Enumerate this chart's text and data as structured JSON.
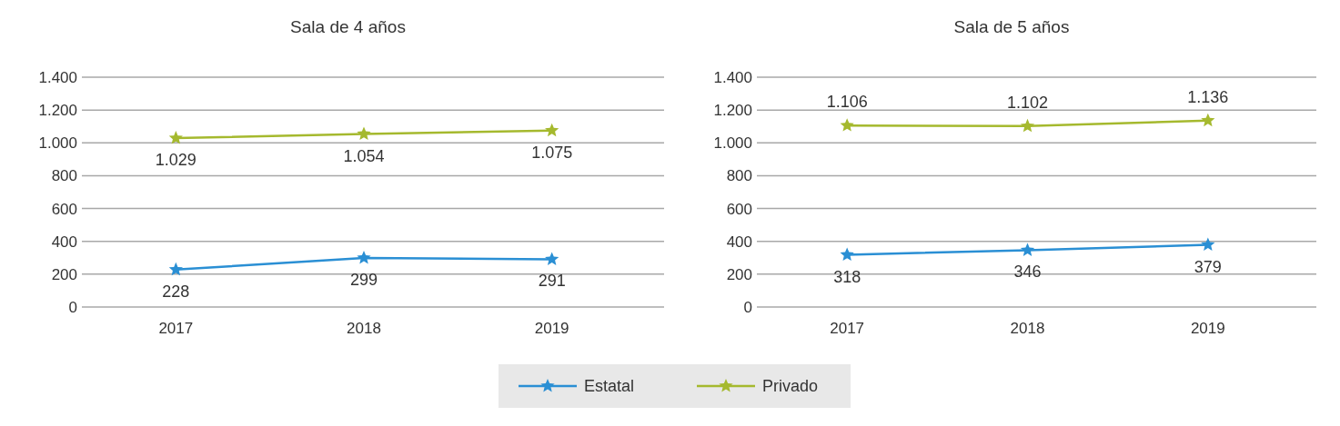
{
  "chart_data": [
    {
      "type": "line",
      "title": "Sala de 4 años",
      "categories": [
        "2017",
        "2018",
        "2019"
      ],
      "ylim": [
        0,
        1400
      ],
      "yticks": [
        0,
        200,
        400,
        600,
        800,
        {
          "value": 1000,
          "label": "1.000"
        },
        {
          "value": 1200,
          "label": "1.200"
        },
        {
          "value": 1400,
          "label": "1.400"
        }
      ],
      "grid": "y",
      "marker": "star",
      "legend": "bottom",
      "series": [
        {
          "name": "Estatal",
          "color": "#2a8fd4",
          "values": [
            228,
            299,
            291
          ],
          "value_labels": [
            "228",
            "299",
            "291"
          ]
        },
        {
          "name": "Privado",
          "color": "#a5b92e",
          "values": [
            1029,
            1054,
            1075
          ],
          "value_labels": [
            "1.029",
            "1.054",
            "1.075"
          ]
        }
      ]
    },
    {
      "type": "line",
      "title": "Sala de 5 años",
      "categories": [
        "2017",
        "2018",
        "2019"
      ],
      "ylim": [
        0,
        1400
      ],
      "yticks": [
        0,
        200,
        400,
        600,
        800,
        {
          "value": 1000,
          "label": "1.000"
        },
        {
          "value": 1200,
          "label": "1.200"
        },
        {
          "value": 1400,
          "label": "1.400"
        }
      ],
      "grid": "y",
      "marker": "star",
      "legend": "bottom",
      "series": [
        {
          "name": "Estatal",
          "color": "#2a8fd4",
          "values": [
            318,
            346,
            379
          ],
          "value_labels": [
            "318",
            "346",
            "379"
          ]
        },
        {
          "name": "Privado",
          "color": "#a5b92e",
          "values": [
            1106,
            1102,
            1136
          ],
          "value_labels": [
            "1.106",
            "1.102",
            "1.136"
          ]
        }
      ]
    }
  ]
}
